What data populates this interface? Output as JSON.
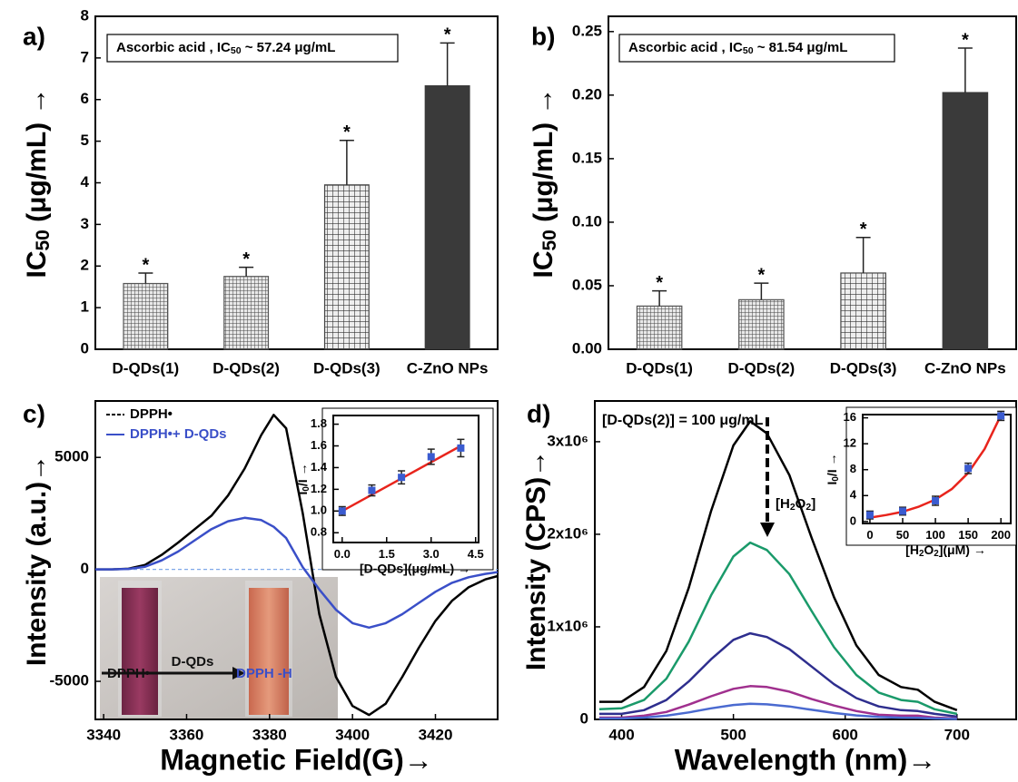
{
  "chart_data": [
    {
      "type": "bar",
      "panel": "a)",
      "annotation": [
        "Ascorbic acid , IC",
        {
          "sub": "50"
        },
        " ~ 57.24 μg/mL"
      ],
      "ylabel": [
        "IC",
        {
          "sub": "50"
        },
        " (μg/mL) →"
      ],
      "categories": [
        "D-QDs(1)",
        "D-QDs(2)",
        "D-QDs(3)",
        "C-ZnO NPs"
      ],
      "values": [
        1.58,
        1.75,
        3.95,
        6.33
      ],
      "errors": [
        0.25,
        0.22,
        1.07,
        1.03
      ],
      "markers": [
        "*",
        "*",
        "*",
        "*"
      ],
      "colors": [
        "#555555",
        "#555555",
        "#444444",
        "#3a3a3a"
      ],
      "patterns": [
        "grid-fine",
        "grid-fine",
        "grid-coarse",
        "solid"
      ],
      "ylim": [
        0,
        8
      ],
      "yticks": [
        0,
        1,
        2,
        3,
        4,
        5,
        6,
        7,
        8
      ]
    },
    {
      "type": "bar",
      "panel": "b)",
      "annotation": [
        "Ascorbic acid , IC",
        {
          "sub": "50"
        },
        " ~ 81.54 μg/mL"
      ],
      "ylabel": [
        "IC",
        {
          "sub": "50"
        },
        " (μg/mL) →"
      ],
      "categories": [
        "D-QDs(1)",
        "D-QDs(2)",
        "D-QDs(3)",
        "C-ZnO NPs"
      ],
      "values": [
        0.034,
        0.039,
        0.06,
        0.202
      ],
      "errors": [
        0.012,
        0.013,
        0.028,
        0.035
      ],
      "markers": [
        "*",
        "*",
        "*",
        "*"
      ],
      "colors": [
        "#555555",
        "#555555",
        "#444444",
        "#3a3a3a"
      ],
      "patterns": [
        "grid-fine",
        "grid-fine",
        "grid-coarse",
        "solid"
      ],
      "ylim": [
        0,
        0.262
      ],
      "yticks": [
        {
          "value": 0,
          "label": "0.00"
        },
        0.05,
        {
          "value": 0.1,
          "label": "0.10"
        },
        0.15,
        {
          "value": 0.2,
          "label": "0.20"
        },
        0.25
      ]
    },
    {
      "type": "line",
      "panel": "c)",
      "xlabel": "Magnetic Field(G)→",
      "ylabel": "Intensity (a.u.)→",
      "xlim": [
        3338,
        3435
      ],
      "xticks": [
        3340,
        3360,
        3380,
        3400,
        3420
      ],
      "ylim": [
        -6700,
        7520
      ],
      "yticks": [
        -5000,
        0,
        5000
      ],
      "zero_line": true,
      "legend": "upper left",
      "x": [
        3338,
        3342,
        3346,
        3350,
        3354,
        3358,
        3362,
        3366,
        3370,
        3374,
        3378,
        3381,
        3384,
        3388,
        3392,
        3396,
        3400,
        3404,
        3408,
        3412,
        3416,
        3420,
        3424,
        3428,
        3432,
        3435
      ],
      "series": [
        {
          "name": "DPPH•",
          "color": "#000000",
          "legend_style": "dashed",
          "values": [
            0,
            0,
            30,
            200,
            650,
            1200,
            1800,
            2400,
            3300,
            4500,
            6000,
            6900,
            6300,
            2500,
            -2000,
            -4800,
            -6100,
            -6500,
            -6000,
            -4800,
            -3500,
            -2300,
            -1400,
            -800,
            -450,
            -300
          ]
        },
        {
          "name": "DPPH•+ D-QDs",
          "color": "#3a4fc8",
          "legend_style": "solid",
          "values": [
            0,
            0,
            20,
            120,
            400,
            800,
            1300,
            1800,
            2150,
            2300,
            2200,
            1900,
            1400,
            100,
            -900,
            -1800,
            -2400,
            -2600,
            -2400,
            -2000,
            -1500,
            -1000,
            -600,
            -350,
            -200,
            -120
          ]
        }
      ],
      "photo": {
        "labels": [
          "DPPH•",
          "D-QDs",
          "DPPH -H"
        ]
      },
      "inset": {
        "type": "scatter",
        "xlabel": "[D-QDs](μg/mL) →",
        "ylabel": [
          "I",
          {
            "sub": "0"
          },
          "/I →"
        ],
        "x": [
          0,
          1,
          2,
          3,
          4
        ],
        "values": [
          1.0,
          1.19,
          1.31,
          1.5,
          1.58
        ],
        "errors": [
          0.04,
          0.05,
          0.06,
          0.07,
          0.08
        ],
        "color": "#3a5bd0",
        "fit": {
          "x": [
            0,
            4
          ],
          "values": [
            1.0,
            1.6
          ],
          "color": "#e8241c"
        },
        "xlim": [
          -0.3,
          4.6
        ],
        "xticks": [
          {
            "value": 0,
            "label": "0.0"
          },
          1.5,
          {
            "value": 3,
            "label": "3.0"
          },
          4.5
        ],
        "ylim": [
          0.71,
          1.88
        ],
        "yticks": [
          0.8,
          {
            "value": 1,
            "label": "1.0"
          },
          1.2,
          1.4,
          1.6,
          1.8
        ]
      }
    },
    {
      "type": "line",
      "panel": "d)",
      "xlabel": "Wavelength (nm)→",
      "ylabel": "Intensity (CPS)→",
      "annotation": "[D-QDs(2)] = 100 μg/mL",
      "arrow_label": [
        "[H",
        {
          "sub": "2"
        },
        "O",
        {
          "sub": "2"
        },
        "]"
      ],
      "xlim": [
        376,
        753
      ],
      "xticks": [
        400,
        500,
        600,
        700
      ],
      "ylim": [
        0,
        3440000
      ],
      "yticks": [
        0,
        {
          "value": 1000000,
          "label": "1x10⁶"
        },
        {
          "value": 2000000,
          "label": "2x10⁶"
        },
        {
          "value": 3000000,
          "label": "3x10⁶"
        }
      ],
      "x": [
        380,
        400,
        420,
        440,
        460,
        480,
        500,
        515,
        530,
        550,
        570,
        590,
        610,
        630,
        650,
        665,
        680,
        700
      ],
      "series": [
        {
          "color": "#000000",
          "values": [
            190000,
            190000,
            350000,
            740000,
            1420000,
            2250000,
            2960000,
            3220000,
            3090000,
            2640000,
            1960000,
            1320000,
            800000,
            480000,
            350000,
            320000,
            190000,
            100000
          ]
        },
        {
          "color": "#1a9a6a",
          "values": [
            110000,
            120000,
            210000,
            440000,
            840000,
            1340000,
            1760000,
            1910000,
            1830000,
            1570000,
            1170000,
            780000,
            480000,
            290000,
            210000,
            190000,
            110000,
            60000
          ]
        },
        {
          "color": "#2e2e8e",
          "values": [
            60000,
            60000,
            100000,
            210000,
            410000,
            650000,
            860000,
            930000,
            890000,
            760000,
            570000,
            380000,
            230000,
            140000,
            100000,
            90000,
            60000,
            30000
          ]
        },
        {
          "color": "#a0308e",
          "values": [
            20000,
            20000,
            40000,
            80000,
            160000,
            250000,
            330000,
            360000,
            350000,
            300000,
            220000,
            150000,
            90000,
            50000,
            40000,
            40000,
            20000,
            10000
          ]
        },
        {
          "color": "#4a6ad0",
          "values": [
            10000,
            10000,
            20000,
            40000,
            75000,
            120000,
            156000,
            170000,
            163000,
            140000,
            104000,
            70000,
            43000,
            26000,
            19000,
            17000,
            10000,
            5000
          ]
        }
      ],
      "inset": {
        "type": "scatter",
        "xlabel": [
          "[H",
          {
            "sub": "2"
          },
          "O",
          {
            "sub": "2"
          },
          "](μM) →"
        ],
        "ylabel": [
          "I",
          {
            "sub": "0"
          },
          "/I →"
        ],
        "x": [
          0,
          50,
          100,
          150,
          200
        ],
        "values": [
          1.0,
          1.6,
          3.2,
          8.2,
          16.3
        ],
        "errors": [
          0.6,
          0.6,
          0.7,
          0.8,
          0.7
        ],
        "color": "#3a5bd0",
        "fit": {
          "x": [
            0,
            25,
            50,
            75,
            100,
            125,
            150,
            175,
            200
          ],
          "values": [
            0.6,
            1.0,
            1.5,
            2.3,
            3.4,
            5.0,
            7.5,
            11.2,
            16.4
          ],
          "color": "#e8241c"
        },
        "xlim": [
          -11,
          215
        ],
        "xticks": [
          0,
          50,
          100,
          150,
          200
        ],
        "ylim": [
          -0.3,
          16.5
        ],
        "yticks": [
          0,
          4,
          8,
          12,
          16
        ]
      }
    }
  ]
}
